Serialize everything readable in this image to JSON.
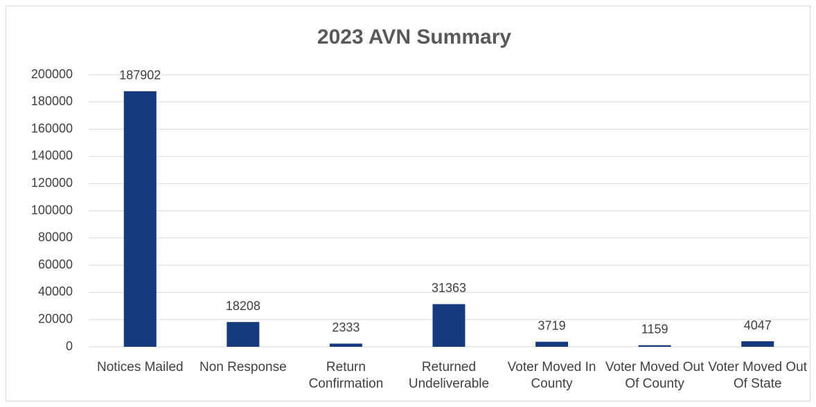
{
  "chart_data": {
    "type": "bar",
    "title": "2023 AVN Summary",
    "categories": [
      "Notices Mailed",
      "Non Response",
      "Return Confirmation",
      "Returned Undeliverable",
      "Voter Moved In County",
      "Voter Moved Out Of County",
      "Voter Moved Out Of State"
    ],
    "values": [
      187902,
      18208,
      2333,
      31363,
      3719,
      1159,
      4047
    ],
    "color": "#17397e",
    "ylim": [
      0,
      200000
    ],
    "yticks": [
      0,
      20000,
      40000,
      60000,
      80000,
      100000,
      120000,
      140000,
      160000,
      180000,
      200000
    ],
    "grid": true
  }
}
